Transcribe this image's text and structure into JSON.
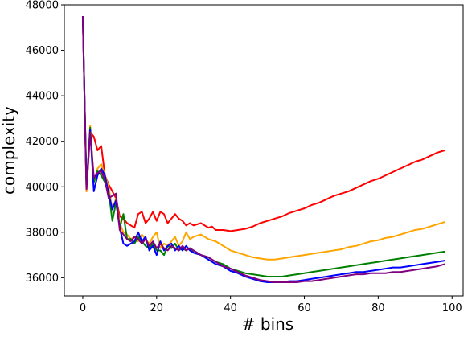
{
  "chart_data": {
    "type": "line",
    "xlabel": "# bins",
    "ylabel": "complexity",
    "xlim": [
      -5,
      103
    ],
    "ylim": [
      35200,
      48000
    ],
    "xticks": [
      0,
      20,
      40,
      60,
      80,
      100
    ],
    "yticks": [
      36000,
      38000,
      40000,
      42000,
      44000,
      46000,
      48000
    ],
    "grid": false,
    "series": [
      {
        "color": "#ff0000",
        "x": [
          0,
          1,
          2,
          3,
          4,
          5,
          6,
          7,
          8,
          9,
          10,
          11,
          12,
          13,
          14,
          15,
          16,
          17,
          18,
          19,
          20,
          21,
          22,
          23,
          24,
          25,
          26,
          27,
          28,
          29,
          30,
          32,
          34,
          35,
          36,
          38,
          40,
          42,
          44,
          46,
          48,
          50,
          52,
          54,
          56,
          58,
          60,
          62,
          64,
          66,
          68,
          70,
          72,
          74,
          76,
          78,
          80,
          82,
          84,
          86,
          88,
          90,
          92,
          94,
          96,
          98
        ],
        "values": [
          47500,
          39800,
          42400,
          42200,
          41600,
          41800,
          40500,
          40100,
          39800,
          39500,
          38700,
          38600,
          38400,
          38300,
          38200,
          38800,
          38900,
          38400,
          38600,
          38900,
          38500,
          38900,
          38800,
          38400,
          38600,
          38800,
          38600,
          38500,
          38300,
          38400,
          38300,
          38400,
          38200,
          38250,
          38100,
          38100,
          38050,
          38100,
          38150,
          38250,
          38400,
          38500,
          38600,
          38700,
          38850,
          38950,
          39050,
          39200,
          39300,
          39450,
          39600,
          39700,
          39800,
          39950,
          40100,
          40250,
          40350,
          40500,
          40650,
          40800,
          40950,
          41100,
          41200,
          41350,
          41500,
          41600
        ]
      },
      {
        "color": "#ffa500",
        "x": [
          0,
          1,
          2,
          3,
          4,
          5,
          6,
          7,
          8,
          9,
          10,
          11,
          12,
          13,
          14,
          15,
          16,
          17,
          18,
          19,
          20,
          21,
          22,
          23,
          24,
          25,
          26,
          27,
          28,
          29,
          30,
          32,
          34,
          36,
          38,
          40,
          42,
          44,
          46,
          48,
          50,
          52,
          54,
          56,
          58,
          60,
          62,
          64,
          66,
          68,
          70,
          72,
          74,
          76,
          78,
          80,
          82,
          84,
          86,
          88,
          90,
          92,
          94,
          96,
          98
        ],
        "values": [
          47500,
          39800,
          42700,
          40200,
          40800,
          41000,
          40500,
          40000,
          39000,
          39500,
          38400,
          38000,
          37900,
          37700,
          37800,
          37600,
          37900,
          37700,
          37500,
          37800,
          38000,
          37300,
          37500,
          37400,
          37600,
          37800,
          37400,
          37600,
          38000,
          37700,
          37800,
          37900,
          37700,
          37600,
          37400,
          37200,
          37100,
          37000,
          36900,
          36850,
          36800,
          36800,
          36850,
          36900,
          36950,
          37000,
          37050,
          37100,
          37150,
          37200,
          37250,
          37350,
          37400,
          37500,
          37600,
          37650,
          37750,
          37800,
          37900,
          38000,
          38100,
          38150,
          38250,
          38350,
          38450
        ]
      },
      {
        "color": "#008000",
        "x": [
          0,
          1,
          2,
          3,
          4,
          5,
          6,
          7,
          8,
          9,
          10,
          11,
          12,
          13,
          14,
          15,
          16,
          17,
          18,
          19,
          20,
          21,
          22,
          23,
          24,
          25,
          26,
          27,
          28,
          29,
          30,
          32,
          34,
          36,
          38,
          40,
          42,
          44,
          46,
          48,
          50,
          52,
          54,
          56,
          58,
          60,
          62,
          64,
          66,
          68,
          70,
          72,
          74,
          76,
          78,
          80,
          82,
          84,
          86,
          88,
          90,
          92,
          94,
          96,
          98
        ],
        "values": [
          47500,
          40000,
          42600,
          40200,
          40700,
          40500,
          40200,
          39800,
          38500,
          39300,
          38200,
          38800,
          37700,
          37700,
          37500,
          37800,
          37600,
          37400,
          37300,
          37500,
          37200,
          37200,
          37000,
          37400,
          37300,
          37500,
          37200,
          37300,
          37200,
          37300,
          37100,
          37000,
          36900,
          36700,
          36600,
          36400,
          36300,
          36200,
          36150,
          36100,
          36050,
          36050,
          36050,
          36100,
          36150,
          36200,
          36250,
          36300,
          36350,
          36400,
          36450,
          36500,
          36550,
          36600,
          36650,
          36700,
          36750,
          36800,
          36850,
          36900,
          36950,
          37000,
          37050,
          37100,
          37150
        ]
      },
      {
        "color": "#0000ff",
        "x": [
          0,
          1,
          2,
          3,
          4,
          5,
          6,
          7,
          8,
          9,
          10,
          11,
          12,
          13,
          14,
          15,
          16,
          17,
          18,
          19,
          20,
          21,
          22,
          23,
          24,
          25,
          26,
          27,
          28,
          29,
          30,
          32,
          34,
          36,
          38,
          40,
          42,
          44,
          46,
          48,
          50,
          52,
          54,
          56,
          58,
          60,
          62,
          64,
          66,
          68,
          70,
          72,
          74,
          76,
          78,
          80,
          82,
          84,
          86,
          88,
          90,
          92,
          94,
          96,
          98
        ],
        "values": [
          47500,
          40000,
          42500,
          39800,
          40500,
          40800,
          40500,
          39700,
          39000,
          39400,
          38200,
          37500,
          37400,
          37500,
          37600,
          38000,
          37600,
          37800,
          37200,
          37400,
          37000,
          37600,
          37200,
          37400,
          37500,
          37200,
          37400,
          37200,
          37400,
          37200,
          37100,
          37000,
          36800,
          36600,
          36500,
          36300,
          36200,
          36050,
          35950,
          35850,
          35800,
          35800,
          35800,
          35850,
          35850,
          35900,
          35950,
          36000,
          36050,
          36100,
          36150,
          36200,
          36250,
          36250,
          36300,
          36350,
          36400,
          36450,
          36450,
          36500,
          36550,
          36600,
          36650,
          36700,
          36750
        ]
      },
      {
        "color": "#800080",
        "x": [
          0,
          1,
          2,
          3,
          4,
          5,
          6,
          7,
          8,
          9,
          10,
          11,
          12,
          13,
          14,
          15,
          16,
          17,
          18,
          19,
          20,
          21,
          22,
          23,
          24,
          25,
          26,
          27,
          28,
          29,
          30,
          32,
          34,
          36,
          38,
          40,
          42,
          44,
          46,
          48,
          50,
          52,
          54,
          56,
          58,
          60,
          62,
          64,
          66,
          68,
          70,
          72,
          74,
          76,
          78,
          80,
          82,
          84,
          86,
          88,
          90,
          92,
          94,
          96,
          98
        ],
        "values": [
          47500,
          39900,
          42400,
          40400,
          40600,
          40700,
          40300,
          39500,
          39600,
          39700,
          38100,
          37900,
          37700,
          37600,
          37800,
          37700,
          37500,
          37700,
          37400,
          37600,
          37300,
          37500,
          37300,
          37200,
          37400,
          37300,
          37200,
          37400,
          37200,
          37300,
          37200,
          37000,
          36900,
          36700,
          36500,
          36400,
          36250,
          36100,
          36000,
          35900,
          35850,
          35800,
          35800,
          35800,
          35800,
          35850,
          35850,
          35900,
          35950,
          36000,
          36050,
          36100,
          36150,
          36150,
          36200,
          36200,
          36200,
          36250,
          36250,
          36300,
          36350,
          36400,
          36450,
          36500,
          36600
        ]
      }
    ]
  }
}
